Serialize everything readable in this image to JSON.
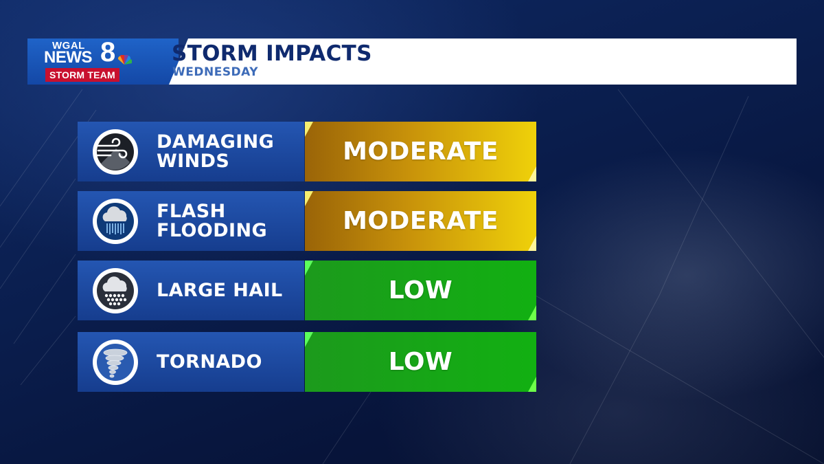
{
  "logo": {
    "line1": "WGAL",
    "line2": "NEWS",
    "number": "8",
    "badge": "STORM TEAM",
    "badge_color": "#c8102e"
  },
  "header": {
    "title": "STORM IMPACTS",
    "subtitle": "WEDNESDAY"
  },
  "impacts": [
    {
      "label": "DAMAGING\nWINDS",
      "level": "MODERATE",
      "icon": "wind-icon",
      "level_color": "#c8920a"
    },
    {
      "label": "FLASH\nFLOODING",
      "level": "MODERATE",
      "icon": "rain-cloud-icon",
      "level_color": "#c8920a"
    },
    {
      "label": "LARGE HAIL",
      "level": "LOW",
      "icon": "hail-cloud-icon",
      "level_color": "#12b012"
    },
    {
      "label": "TORNADO",
      "level": "LOW",
      "icon": "tornado-icon",
      "level_color": "#12b012"
    }
  ]
}
